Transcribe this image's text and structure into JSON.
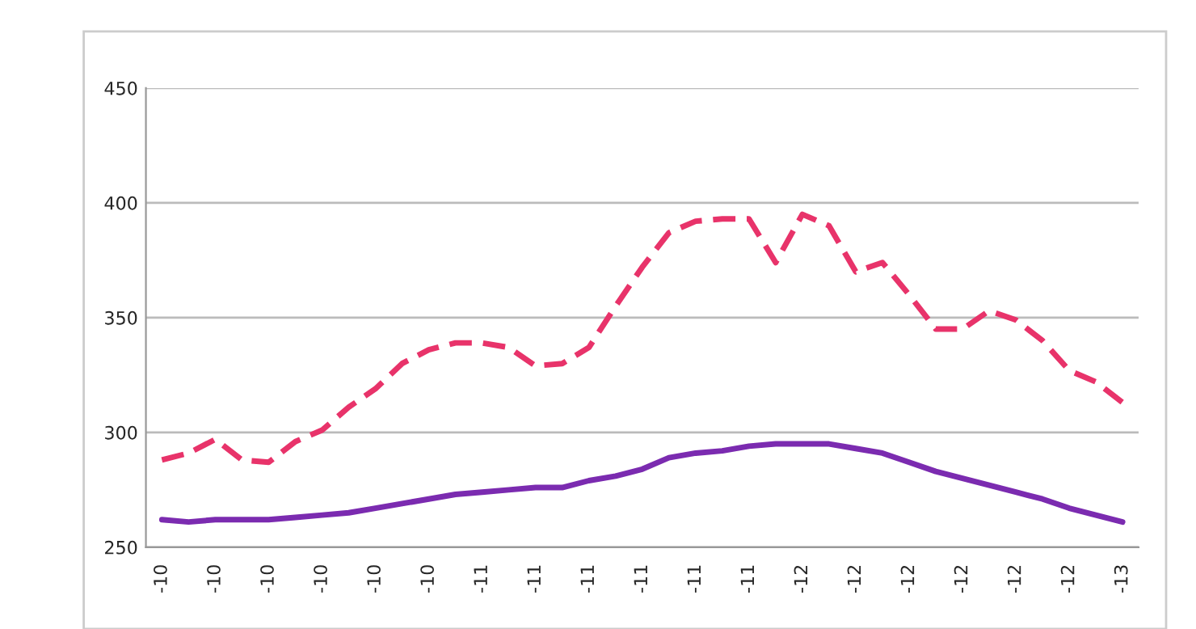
{
  "chart_data": {
    "type": "line",
    "categories": [
      "-10",
      null,
      "-10",
      null,
      "-10",
      null,
      "-10",
      null,
      "-10",
      null,
      "-10",
      null,
      "-11",
      null,
      "-11",
      null,
      "-11",
      null,
      "-11",
      null,
      "-11",
      null,
      "-11",
      null,
      "-12",
      null,
      "-12",
      null,
      "-12",
      null,
      "-12",
      null,
      "-12",
      null,
      "-12",
      null,
      "-13"
    ],
    "series": [
      {
        "color": "#e8336a",
        "line_style": "dashed",
        "values": [
          288,
          291,
          297,
          288,
          287,
          296,
          301,
          311,
          319,
          330,
          336,
          339,
          339,
          337,
          329,
          330,
          337,
          355,
          372,
          387,
          392,
          393,
          393,
          374,
          395,
          390,
          370,
          374,
          360,
          345,
          345,
          353,
          349,
          340,
          327,
          322,
          313
        ]
      },
      {
        "color": "#7b2bb0",
        "line_style": "solid",
        "values": [
          262,
          261,
          262,
          262,
          262,
          263,
          264,
          265,
          267,
          269,
          271,
          273,
          274,
          275,
          276,
          276,
          279,
          281,
          284,
          289,
          291,
          292,
          294,
          295,
          295,
          295,
          293,
          291,
          287,
          283,
          280,
          277,
          274,
          271,
          267,
          264,
          261
        ]
      }
    ],
    "ylim": [
      250,
      450
    ],
    "yticks": [
      250,
      300,
      350,
      400,
      450
    ],
    "grid": "y",
    "legend": false,
    "marker": "none"
  }
}
